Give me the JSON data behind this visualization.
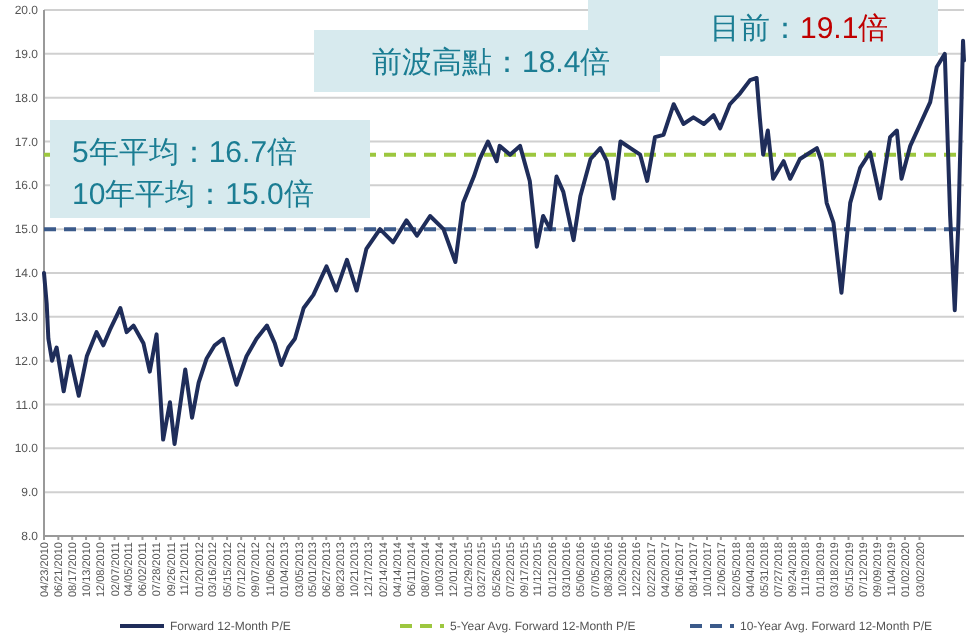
{
  "chart_data": {
    "type": "line",
    "x": [
      "2010-04-23",
      "2010-05-04",
      "2010-05-11",
      "2010-05-26",
      "2010-06-14",
      "2010-07-13",
      "2010-08-08",
      "2010-09-13",
      "2010-10-16",
      "2010-11-25",
      "2010-12-23",
      "2011-01-19",
      "2011-03-03",
      "2011-03-29",
      "2011-04-26",
      "2011-06-06",
      "2011-07-02",
      "2011-07-30",
      "2011-08-26",
      "2011-09-23",
      "2011-10-12",
      "2011-10-29",
      "2011-11-25",
      "2011-12-23",
      "2012-01-19",
      "2012-02-21",
      "2012-03-25",
      "2012-04-29",
      "2012-06-23",
      "2012-08-03",
      "2012-09-13",
      "2012-10-26",
      "2012-11-27",
      "2012-12-24",
      "2013-01-22",
      "2013-02-18",
      "2013-03-26",
      "2013-05-05",
      "2013-06-28",
      "2013-08-07",
      "2013-09-20",
      "2013-10-30",
      "2013-12-09",
      "2014-02-03",
      "2014-03-29",
      "2014-05-23",
      "2014-07-05",
      "2014-08-28",
      "2014-10-22",
      "2014-12-10",
      "2015-01-11",
      "2015-02-24",
      "2015-03-20",
      "2015-04-23",
      "2015-05-29",
      "2015-06-10",
      "2015-07-23",
      "2015-09-02",
      "2015-10-12",
      "2015-11-10",
      "2015-12-06",
      "2016-01-04",
      "2016-01-30",
      "2016-02-27",
      "2016-04-09",
      "2016-05-07",
      "2016-06-18",
      "2016-07-28",
      "2016-08-24",
      "2016-09-21",
      "2016-10-19",
      "2016-11-29",
      "2017-01-08",
      "2017-02-06",
      "2017-03-10",
      "2017-04-14",
      "2017-05-26",
      "2017-07-05",
      "2017-08-15",
      "2017-09-27",
      "2017-11-06",
      "2017-12-03",
      "2018-01-12",
      "2018-02-23",
      "2018-04-05",
      "2018-05-02",
      "2018-05-15",
      "2018-05-29",
      "2018-06-17",
      "2018-07-09",
      "2018-08-21",
      "2018-09-17",
      "2018-10-27",
      "2018-12-08",
      "2019-01-05",
      "2019-01-24",
      "2019-02-14",
      "2019-03-14",
      "2019-04-16",
      "2019-05-22",
      "2019-07-02",
      "2019-08-12",
      "2019-09-22",
      "2019-11-02",
      "2019-11-30",
      "2019-12-19",
      "2020-01-24",
      "2020-03-05",
      "2020-04-15",
      "2020-05-12",
      "2020-06-14",
      "2020-07-06",
      "2020-07-25",
      "2020-08-09",
      "2020-08-28",
      "2020-09-01"
    ],
    "series": [
      {
        "name": "Forward 12-Month P/E",
        "color": "#1f2d5a",
        "values": [
          14.0,
          13.3,
          12.5,
          12.0,
          12.3,
          11.3,
          12.1,
          11.2,
          12.1,
          12.65,
          12.35,
          12.7,
          13.2,
          12.65,
          12.8,
          12.4,
          11.75,
          12.6,
          10.2,
          11.05,
          10.1,
          10.75,
          11.8,
          10.7,
          11.5,
          12.05,
          12.35,
          12.5,
          11.45,
          12.1,
          12.5,
          12.8,
          12.4,
          11.9,
          12.3,
          12.5,
          13.2,
          13.5,
          14.15,
          13.6,
          14.3,
          13.6,
          14.55,
          15.0,
          14.7,
          15.2,
          14.85,
          15.3,
          15.0,
          14.25,
          15.6,
          16.2,
          16.6,
          17.0,
          16.55,
          16.9,
          16.7,
          16.9,
          16.1,
          14.6,
          15.3,
          15.0,
          16.2,
          15.85,
          14.75,
          15.75,
          16.6,
          16.85,
          16.55,
          15.7,
          17.0,
          16.85,
          16.7,
          16.1,
          17.1,
          17.15,
          17.85,
          17.4,
          17.55,
          17.4,
          17.6,
          17.3,
          17.85,
          18.1,
          18.4,
          18.45,
          17.55,
          16.7,
          17.25,
          16.15,
          16.55,
          16.15,
          16.6,
          16.75,
          16.85,
          16.55,
          15.6,
          15.15,
          13.55,
          15.6,
          16.4,
          16.75,
          15.7,
          17.1,
          17.25,
          16.15,
          16.9,
          17.4,
          17.9,
          18.7,
          19.0,
          15.3,
          13.15,
          15.15,
          19.3,
          18.85
        ]
      }
    ],
    "ref_lines": [
      {
        "axis": "y",
        "value": 16.7,
        "label": "5-Year Avg. Forward 12-Month P/E",
        "color": "#9dc73f",
        "line_style": "dashed"
      },
      {
        "axis": "y",
        "value": 15.0,
        "label": "10-Year Avg. Forward 12-Month P/E",
        "color": "#3b5a8a",
        "line_style": "dashed"
      }
    ],
    "annotations": [
      "前波高點：18.4倍",
      "目前：",
      "19.1倍",
      "5年平均：16.7倍",
      "10年平均：15.0倍"
    ],
    "xlim": [
      "2010-04-23",
      "2020-09-01"
    ],
    "xticks": [
      {
        "value": "2010-04-23",
        "label": "04/23/2010"
      },
      {
        "value": "2010-06-21",
        "label": "06/21/2010"
      },
      {
        "value": "2010-08-17",
        "label": "08/17/2010"
      },
      {
        "value": "2010-10-13",
        "label": "10/13/2010"
      },
      {
        "value": "2010-12-08",
        "label": "12/08/2010"
      },
      {
        "value": "2011-02-07",
        "label": "02/07/2011"
      },
      {
        "value": "2011-04-05",
        "label": "04/05/2011"
      },
      {
        "value": "2011-06-02",
        "label": "06/02/2011"
      },
      {
        "value": "2011-07-28",
        "label": "07/28/2011"
      },
      {
        "value": "2011-09-26",
        "label": "09/26/2011"
      },
      {
        "value": "2011-11-21",
        "label": "11/21/2011"
      },
      {
        "value": "2012-01-20",
        "label": "01/20/2012"
      },
      {
        "value": "2012-03-16",
        "label": "03/16/2012"
      },
      {
        "value": "2012-05-15",
        "label": "05/15/2012"
      },
      {
        "value": "2012-07-12",
        "label": "07/12/2012"
      },
      {
        "value": "2012-09-07",
        "label": "09/07/2012"
      },
      {
        "value": "2012-11-06",
        "label": "11/06/2012"
      },
      {
        "value": "2013-01-04",
        "label": "01/04/2013"
      },
      {
        "value": "2013-03-05",
        "label": "03/05/2013"
      },
      {
        "value": "2013-05-01",
        "label": "05/01/2013"
      },
      {
        "value": "2013-06-27",
        "label": "06/27/2013"
      },
      {
        "value": "2013-08-23",
        "label": "08/23/2013"
      },
      {
        "value": "2013-10-21",
        "label": "10/21/2013"
      },
      {
        "value": "2013-12-17",
        "label": "12/17/2013"
      },
      {
        "value": "2014-02-14",
        "label": "02/14/2014"
      },
      {
        "value": "2014-04-14",
        "label": "04/14/2014"
      },
      {
        "value": "2014-06-11",
        "label": "06/11/2014"
      },
      {
        "value": "2014-08-07",
        "label": "08/07/2014"
      },
      {
        "value": "2014-10-03",
        "label": "10/03/2014"
      },
      {
        "value": "2014-12-01",
        "label": "12/01/2014"
      },
      {
        "value": "2015-01-29",
        "label": "01/29/2015"
      },
      {
        "value": "2015-03-27",
        "label": "03/27/2015"
      },
      {
        "value": "2015-05-26",
        "label": "05/26/2015"
      },
      {
        "value": "2015-07-22",
        "label": "07/22/2015"
      },
      {
        "value": "2015-09-17",
        "label": "09/17/2015"
      },
      {
        "value": "2015-11-12",
        "label": "11/12/2015"
      },
      {
        "value": "2016-01-12",
        "label": "01/12/2016"
      },
      {
        "value": "2016-03-10",
        "label": "03/10/2016"
      },
      {
        "value": "2016-05-06",
        "label": "05/06/2016"
      },
      {
        "value": "2016-07-05",
        "label": "07/05/2016"
      },
      {
        "value": "2016-08-30",
        "label": "08/30/2016"
      },
      {
        "value": "2016-10-26",
        "label": "10/26/2016"
      },
      {
        "value": "2016-12-22",
        "label": "12/22/2016"
      },
      {
        "value": "2017-02-22",
        "label": "02/22/2017"
      },
      {
        "value": "2017-04-20",
        "label": "04/20/2017"
      },
      {
        "value": "2017-06-16",
        "label": "06/16/2017"
      },
      {
        "value": "2017-08-14",
        "label": "08/14/2017"
      },
      {
        "value": "2017-10-10",
        "label": "10/10/2017"
      },
      {
        "value": "2017-12-06",
        "label": "12/06/2017"
      },
      {
        "value": "2018-02-05",
        "label": "02/05/2018"
      },
      {
        "value": "2018-04-04",
        "label": "04/04/2018"
      },
      {
        "value": "2018-05-31",
        "label": "05/31/2018"
      },
      {
        "value": "2018-07-27",
        "label": "07/27/2018"
      },
      {
        "value": "2018-09-24",
        "label": "09/24/2018"
      },
      {
        "value": "2018-11-19",
        "label": "11/19/2018"
      },
      {
        "value": "2019-01-18",
        "label": "01/18/2019"
      },
      {
        "value": "2019-03-18",
        "label": "03/18/2019"
      },
      {
        "value": "2019-05-15",
        "label": "05/15/2019"
      },
      {
        "value": "2019-07-12",
        "label": "07/12/2019"
      },
      {
        "value": "2019-09-09",
        "label": "09/09/2019"
      },
      {
        "value": "2019-11-04",
        "label": "11/04/2019"
      },
      {
        "value": "2020-01-02",
        "label": "01/02/2020"
      },
      {
        "value": "2020-03-02",
        "label": "03/02/2020"
      }
    ],
    "ylim": [
      8.0,
      20.0
    ],
    "yticks": [
      {
        "value": 8,
        "label": "8.0"
      },
      {
        "value": 9,
        "label": "9.0"
      },
      {
        "value": 10,
        "label": "10.0"
      },
      {
        "value": 11,
        "label": "11.0"
      },
      {
        "value": 12,
        "label": "12.0"
      },
      {
        "value": 13,
        "label": "13.0"
      },
      {
        "value": 14,
        "label": "14.0"
      },
      {
        "value": 15,
        "label": "15.0"
      },
      {
        "value": 16,
        "label": "16.0"
      },
      {
        "value": 17,
        "label": "17.0"
      },
      {
        "value": 18,
        "label": "18.0"
      },
      {
        "value": 19,
        "label": "19.0"
      },
      {
        "value": 20,
        "label": "20.0"
      }
    ],
    "grid": "y",
    "legend": "bottom",
    "marker": "none",
    "line_style": "solid"
  }
}
